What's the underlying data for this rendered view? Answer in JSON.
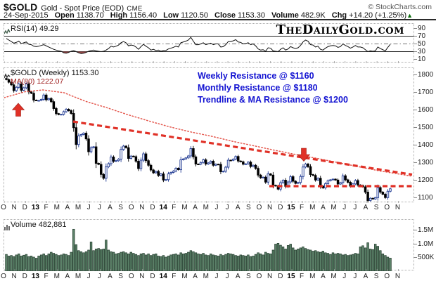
{
  "header": {
    "symbol": "$GOLD",
    "description": "Gold - Spot Price (EOD)",
    "exchange": "CME",
    "copyright": "© StockCharts.com",
    "date": "24-Sep-2015",
    "quote": [
      {
        "label": "Open",
        "value": "1138.70"
      },
      {
        "label": "High",
        "value": "1156.40"
      },
      {
        "label": "Low",
        "value": "1120.50"
      },
      {
        "label": "Close",
        "value": "1153.30"
      },
      {
        "label": "Volume",
        "value": "482.9K"
      },
      {
        "label": "Chg",
        "value": "+14.20 (+1.25%)"
      }
    ],
    "chg_direction": "▲"
  },
  "rsi_panel": {
    "title": "RSI(14) 49.29",
    "watermark": "TheDailyGold.com",
    "axis_labels": [
      "90",
      "70",
      "50",
      "30",
      "10"
    ]
  },
  "main_panel": {
    "title": "$GOLD (Weekly) 1153.30",
    "ma_label": "MA(80) 1222.07",
    "axis_labels": [
      "1800",
      "1700",
      "1600",
      "1500",
      "1400",
      "1300",
      "1200",
      "1100"
    ]
  },
  "volume_panel": {
    "title": "Volume 482,881",
    "axis_labels": [
      "1.5M",
      "1.0M",
      "500K"
    ]
  },
  "timeline": {
    "labels": [
      "O",
      "N",
      "D",
      "13",
      "F",
      "M",
      "A",
      "M",
      "J",
      "J",
      "A",
      "S",
      "O",
      "N",
      "D",
      "14",
      "F",
      "M",
      "A",
      "M",
      "J",
      "J",
      "A",
      "S",
      "O",
      "N",
      "D",
      "15",
      "F",
      "M",
      "A",
      "M",
      "J",
      "J",
      "A",
      "S",
      "O",
      "N"
    ],
    "year_indices": [
      3,
      15,
      27
    ]
  },
  "colors": {
    "trend_red": "#e03127",
    "ma_red": "#e4574d",
    "annotation_blue": "#1414d2",
    "candle_up_blue": "#203a93",
    "candle_down_black": "#000000",
    "volume_green_fill": "#5b8168",
    "volume_green_stroke": "#20392a",
    "rsi_fill_maroon": "#9c4747",
    "chg_up_green": "#0a6b0a"
  },
  "chart_data": [
    {
      "type": "line",
      "name": "RSI(14)",
      "current": 49.29,
      "ylim": [
        0,
        100
      ],
      "overbought": 70,
      "midline": 50,
      "oversold": 30,
      "values": [
        64,
        60,
        56,
        52,
        54,
        57,
        51,
        53,
        55,
        49,
        48,
        44,
        43,
        44,
        46,
        48,
        45,
        42,
        39,
        36,
        34,
        32,
        31,
        27,
        26,
        28,
        31,
        33,
        30,
        27,
        25,
        26,
        28,
        31,
        33,
        34,
        32,
        31,
        30,
        31,
        34,
        38,
        44,
        42,
        44,
        47,
        53,
        56,
        53,
        45,
        47,
        46,
        42,
        36,
        43,
        49,
        44,
        40,
        34,
        36,
        33,
        34,
        31,
        33,
        33,
        37,
        39,
        41,
        44,
        42,
        53,
        55,
        57,
        60,
        67,
        57,
        48,
        48,
        50,
        53,
        48,
        50,
        52,
        48,
        50,
        50,
        42,
        43,
        48,
        56,
        56,
        58,
        61,
        55,
        54,
        50,
        51,
        53,
        48,
        50,
        45,
        37,
        34,
        35,
        31,
        40,
        39,
        32,
        31,
        30,
        36,
        40,
        34,
        37,
        43,
        40,
        38,
        40,
        46,
        55,
        60,
        57,
        48,
        47,
        42,
        44,
        36,
        34,
        39,
        43,
        45,
        46,
        45,
        41,
        43,
        50,
        46,
        43,
        39,
        42,
        46,
        42,
        42,
        40,
        35,
        30,
        32,
        31,
        32,
        42,
        38,
        35,
        32,
        41,
        49
      ]
    },
    {
      "type": "candlestick",
      "name": "$GOLD Weekly",
      "interval": "weekly",
      "range": "Oct-2012 to Sep-2015",
      "current_close": 1153.3,
      "ylim": [
        1072,
        1836
      ],
      "closes": [
        1775,
        1760,
        1745,
        1712,
        1731,
        1750,
        1714,
        1728,
        1750,
        1705,
        1697,
        1658,
        1656,
        1656,
        1662,
        1687,
        1660,
        1667,
        1649,
        1610,
        1581,
        1576,
        1577,
        1592,
        1606,
        1598,
        1582,
        1501,
        1405,
        1454,
        1462,
        1470,
        1437,
        1364,
        1387,
        1392,
        1298,
        1292,
        1235,
        1213,
        1278,
        1296,
        1334,
        1310,
        1313,
        1322,
        1377,
        1396,
        1387,
        1326,
        1339,
        1336,
        1310,
        1268,
        1316,
        1352,
        1313,
        1287,
        1260,
        1244,
        1252,
        1229,
        1238,
        1203,
        1205,
        1238,
        1246,
        1254,
        1270,
        1262,
        1318,
        1323,
        1329,
        1340,
        1382,
        1335,
        1294,
        1293,
        1303,
        1318,
        1294,
        1300,
        1310,
        1287,
        1293,
        1292,
        1250,
        1253,
        1276,
        1316,
        1315,
        1322,
        1337,
        1311,
        1307,
        1293,
        1295,
        1305,
        1280,
        1287,
        1269,
        1231,
        1216,
        1219,
        1191,
        1238,
        1231,
        1173,
        1169,
        1151,
        1188,
        1202,
        1167,
        1192,
        1222,
        1196,
        1184,
        1189,
        1223,
        1277,
        1294,
        1279,
        1234,
        1229,
        1203,
        1213,
        1168,
        1158,
        1182,
        1199,
        1204,
        1208,
        1203,
        1180,
        1188,
        1227,
        1204,
        1190,
        1168,
        1181,
        1200,
        1175,
        1172,
        1164,
        1134,
        1086,
        1099,
        1095,
        1103,
        1160,
        1134,
        1122,
        1103,
        1139,
        1153
      ],
      "ma80": {
        "label": "MA(80)",
        "current": 1222.07,
        "points_x_price": [
          [
            5,
            1672
          ],
          [
            35,
            1706
          ],
          [
            60,
            1716
          ],
          [
            90,
            1700
          ],
          [
            120,
            1652
          ],
          [
            150,
            1616
          ],
          [
            180,
            1576
          ],
          [
            210,
            1540
          ],
          [
            240,
            1506
          ],
          [
            270,
            1477
          ],
          [
            300,
            1452
          ],
          [
            330,
            1423
          ],
          [
            360,
            1398
          ],
          [
            390,
            1372
          ],
          [
            420,
            1348
          ],
          [
            450,
            1326
          ],
          [
            480,
            1302
          ],
          [
            510,
            1278
          ],
          [
            540,
            1254
          ],
          [
            565,
            1238
          ],
          [
            583,
            1226
          ]
        ]
      },
      "trendline_resistance": {
        "from_x_price": [
          103,
          1536
        ],
        "to_x_price": [
          585,
          1234
        ]
      },
      "horizontal_resistance": {
        "price": 1168,
        "x_from": 382,
        "x_to": 585
      },
      "annotations": [
        "Weekly Resistance @ $1160",
        "Monthly Resistance @ $1180",
        "Trendline & MA Resistance @ $1200"
      ],
      "arrows": [
        {
          "dir": "up",
          "x": 25,
          "tip_price": 1640
        },
        {
          "dir": "down",
          "x": 431,
          "tip_price": 1310
        }
      ]
    },
    {
      "type": "bar",
      "name": "Volume",
      "current": 482881,
      "ylim_k": [
        0,
        1900
      ],
      "values_k": [
        620,
        560,
        580,
        540,
        600,
        640,
        560,
        590,
        620,
        540,
        560,
        520,
        480,
        560,
        600,
        640,
        580,
        640,
        700,
        660,
        620,
        580,
        600,
        640,
        620,
        580,
        700,
        1550,
        980,
        760,
        720,
        680,
        720,
        780,
        1080,
        760,
        820,
        840,
        800,
        820,
        1150,
        780,
        720,
        700,
        640,
        660,
        700,
        720,
        680,
        640,
        700,
        660,
        620,
        580,
        640,
        660,
        600,
        640,
        580,
        620,
        640,
        560,
        540,
        580,
        520,
        560,
        600,
        620,
        640,
        600,
        680,
        640,
        660,
        700,
        760,
        720,
        680,
        640,
        620,
        660,
        600,
        580,
        640,
        600,
        580,
        560,
        620,
        580,
        620,
        660,
        640,
        620,
        580,
        560,
        600,
        580,
        560,
        600,
        540,
        560,
        620,
        680,
        640,
        600,
        700,
        660,
        640,
        780,
        1000,
        1030,
        960,
        900,
        820,
        950,
        1000,
        860,
        780,
        820,
        860,
        900,
        840,
        800,
        780,
        740,
        760,
        720,
        700,
        740,
        680,
        660,
        620,
        680,
        640,
        660,
        640,
        600,
        620,
        580,
        600,
        620,
        660,
        640,
        900,
        940,
        860,
        1050,
        820,
        800,
        1000,
        920,
        760,
        640,
        580,
        520,
        483
      ]
    }
  ]
}
